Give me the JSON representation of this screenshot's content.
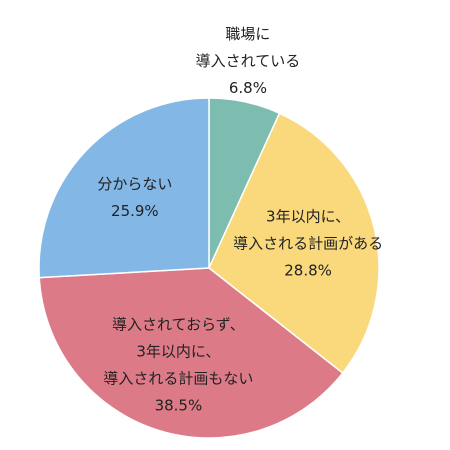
{
  "chart_data": {
    "type": "pie",
    "categories": [
      [
        "職場に",
        "導入されている"
      ],
      [
        "3年以内に、",
        "導入される計画がある"
      ],
      [
        "導入されておらず、",
        "3年以内に、",
        "導入される計画もない"
      ],
      [
        "分からない"
      ]
    ],
    "values": [
      6.8,
      28.8,
      38.5,
      25.9
    ],
    "value_labels": [
      "6.8%",
      "28.8%",
      "38.5%",
      "25.9%"
    ],
    "colors": [
      "#7cbdb0",
      "#f9d97c",
      "#dc7b87",
      "#82b7e6"
    ]
  }
}
